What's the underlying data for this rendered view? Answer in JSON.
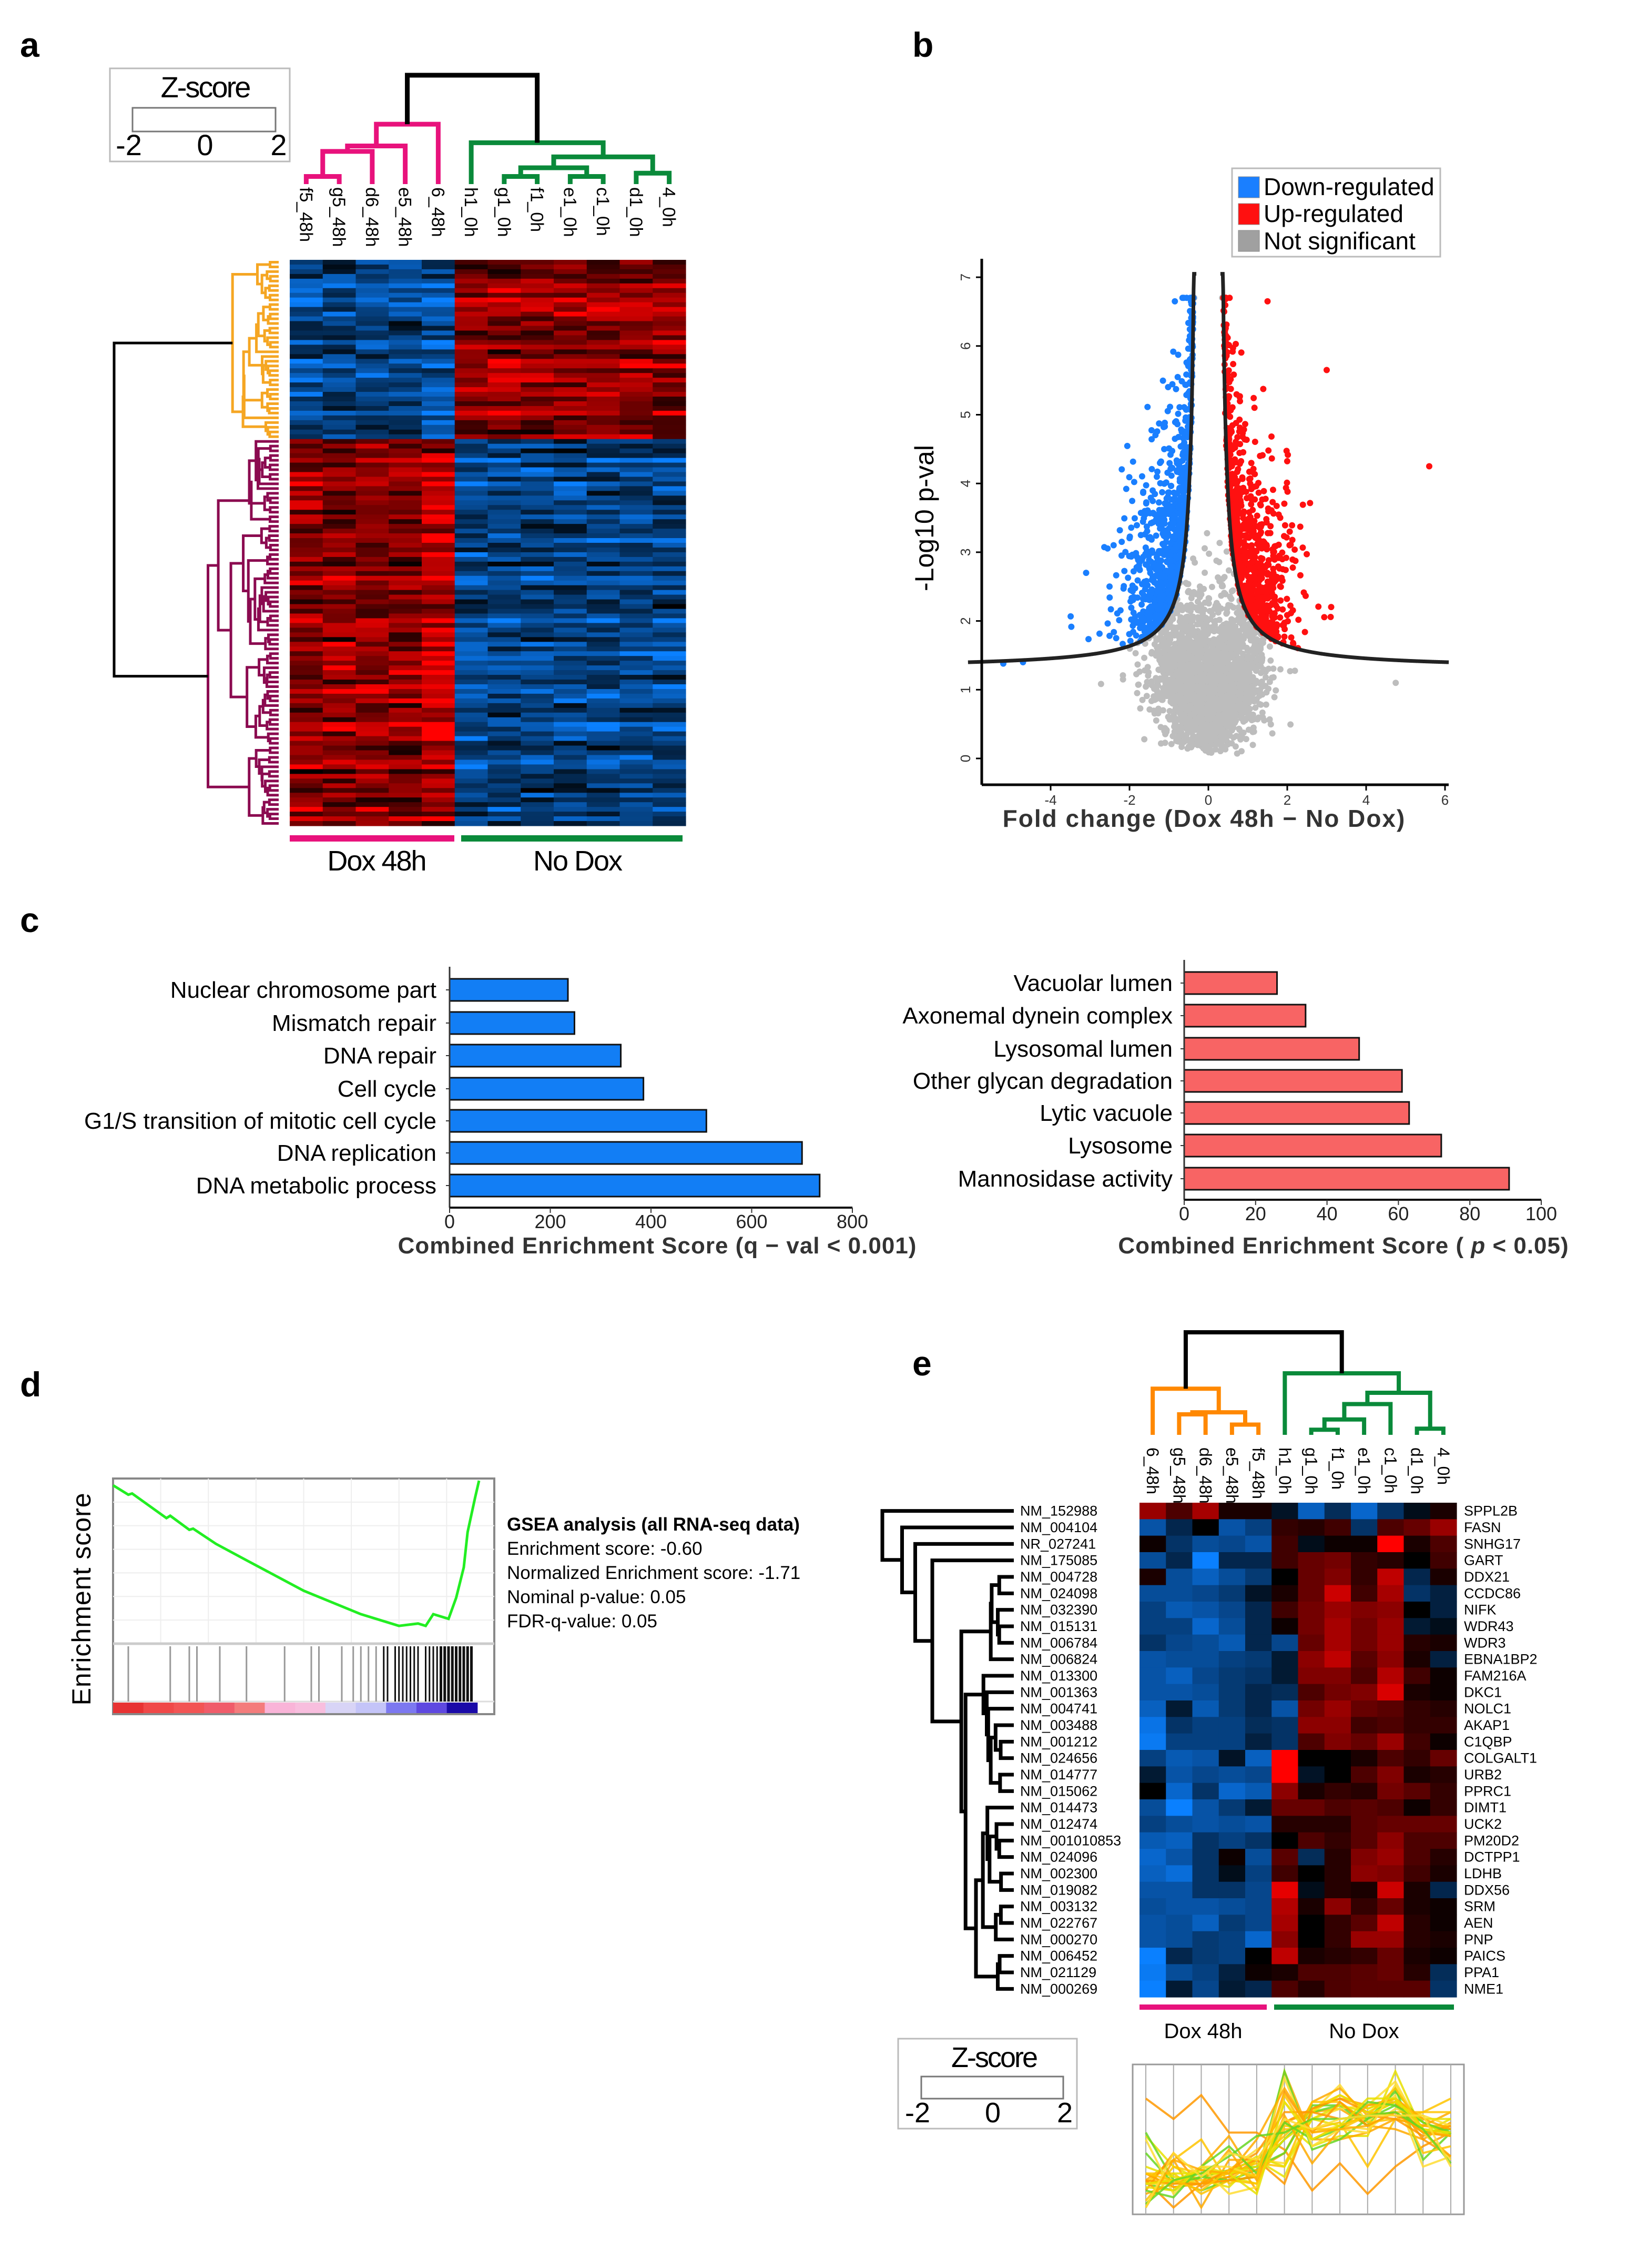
{
  "panels": {
    "a": "a",
    "b": "b",
    "c": "c",
    "d": "d",
    "e": "e"
  },
  "zscore_legend": {
    "title": "Z-score",
    "ticks": [
      "-2",
      "0",
      "2"
    ]
  },
  "colors": {
    "dox48_group": "#e8127c",
    "nodox_group": "#0a8a3a",
    "cluster_orange": "#f5a623",
    "cluster_maroon": "#8b0a50",
    "heat_low": "#0a80ff",
    "heat_mid": "#000000",
    "heat_high": "#ff0000",
    "down": "#1a7fff",
    "up": "#ff1010",
    "ns": "#bdbdbd",
    "bar_left": "#127ef5",
    "bar_right": "#f86464",
    "gsea_line": "#22ee22",
    "e_orange": "#ff8800"
  },
  "chart_data": [
    {
      "id": "a",
      "type": "heatmap",
      "columns": [
        "f5_48h",
        "g5_48h",
        "d6_48h",
        "e5_48h",
        "6_48h",
        "h1_0h",
        "g1_0h",
        "f1_0h",
        "e1_0h",
        "c1_0h",
        "d1_0h",
        "4_0h"
      ],
      "groups": [
        {
          "label": "Dox 48h",
          "columns": 5
        },
        {
          "label": "No Dox",
          "columns": 7
        }
      ],
      "row_clusters": [
        "down in Dox 48h (orange)",
        "up in Dox 48h (maroon)"
      ],
      "color_range": [
        -2,
        2
      ]
    },
    {
      "id": "b",
      "type": "scatter",
      "xlabel": "Fold change (Dox 48h − No Dox)",
      "ylabel": "-Log10 p-val",
      "xlim": [
        -5.8,
        6.1
      ],
      "ylim": [
        -0.3,
        7.3
      ],
      "xticks": [
        "-4",
        "-2",
        "0",
        "2",
        "4",
        "6"
      ],
      "yticks": [
        "0",
        "1",
        "2",
        "3",
        "4",
        "5",
        "6",
        "7"
      ],
      "legend": [
        {
          "label": "Down-regulated",
          "color": "#1a7fff"
        },
        {
          "label": "Up-regulated",
          "color": "#ff1010"
        },
        {
          "label": "Not significant",
          "color": "#a0a0a0"
        }
      ],
      "legend_position": "top-right",
      "threshold_curve": "symmetric hyperbola around 0, asymptote near ±0.27, floor ~1.3",
      "notable_points": [
        {
          "x": 5.6,
          "y": 4.25,
          "class": "up"
        },
        {
          "x": -5.2,
          "y": 1.38,
          "class": "down"
        },
        {
          "x": -4.7,
          "y": 1.4,
          "class": "down"
        },
        {
          "x": -0.85,
          "y": 6.65,
          "class": "down"
        },
        {
          "x": 1.5,
          "y": 6.65,
          "class": "up"
        },
        {
          "x": 3.0,
          "y": 5.65,
          "class": "up"
        },
        {
          "x": -3.1,
          "y": 2.7,
          "class": "down"
        },
        {
          "x": 4.75,
          "y": 1.1,
          "class": "ns"
        }
      ]
    },
    {
      "id": "c-left",
      "type": "bar",
      "orientation": "horizontal",
      "categories": [
        "Nuclear chromosome part",
        "Mismatch repair",
        "DNA repair",
        "Cell cycle",
        "G1/S transition of mitotic cell cycle",
        "DNA replication",
        "DNA metabolic process"
      ],
      "values": [
        235,
        248,
        340,
        385,
        510,
        700,
        735
      ],
      "xlabel": "Combined Enrichment Score (q − val < 0.001)",
      "xlim": [
        0,
        800
      ],
      "xticks": [
        "0",
        "200",
        "400",
        "600",
        "800"
      ]
    },
    {
      "id": "c-right",
      "type": "bar",
      "orientation": "horizontal",
      "categories": [
        "Vacuolar lumen",
        "Axonemal dynein complex",
        "Lysosomal lumen",
        "Other glycan degradation",
        "Lytic vacuole",
        "Lysosome",
        "Mannosidase activity"
      ],
      "values": [
        26,
        34,
        49,
        61,
        63,
        72,
        91
      ],
      "xlabel_prefix": "Combined Enrichment Score ( ",
      "xlabel_italic": "p",
      "xlabel_suffix": " < 0.05)",
      "xlim": [
        0,
        100
      ],
      "xticks": [
        "0",
        "20",
        "40",
        "60",
        "80",
        "100"
      ]
    },
    {
      "id": "d",
      "type": "line",
      "ylabel": "Enrichment score",
      "x": [
        0,
        0.04,
        0.05,
        0.14,
        0.15,
        0.2,
        0.21,
        0.27,
        0.35,
        0.5,
        0.65,
        0.75,
        0.8,
        0.82,
        0.84,
        0.88,
        0.9,
        0.92,
        0.93,
        0.95,
        0.96
      ],
      "y": [
        0,
        -0.04,
        -0.035,
        -0.14,
        -0.13,
        -0.19,
        -0.185,
        -0.25,
        -0.32,
        -0.45,
        -0.55,
        -0.6,
        -0.59,
        -0.6,
        -0.55,
        -0.57,
        -0.48,
        -0.35,
        -0.2,
        -0.05,
        0.02
      ],
      "ylim": [
        -0.64,
        0.02
      ],
      "hits": [
        0.04,
        0.15,
        0.2,
        0.22,
        0.28,
        0.35,
        0.45,
        0.52,
        0.54,
        0.6,
        0.63,
        0.65,
        0.67,
        0.69,
        0.71,
        0.72,
        0.74,
        0.75,
        0.76,
        0.77,
        0.78,
        0.79,
        0.8,
        0.82,
        0.83,
        0.84,
        0.85,
        0.86,
        0.87,
        0.88,
        0.89,
        0.9,
        0.91,
        0.92,
        0.93,
        0.94
      ],
      "rank_colors": [
        "#e83232",
        "#f04848",
        "#f25454",
        "#f05c6a",
        "#f47c7c",
        "#f9b4d8",
        "#f8bede",
        "#d8d4f6",
        "#c4c4f8",
        "#7c78f0",
        "#5e48e0",
        "#1a0aa8"
      ],
      "stats": {
        "title": "GSEA analysis (all RNA-seq data)",
        "enrichment_score": "Enrichment score: -0.60",
        "nes": "Normalized Enrichment score: -1.71",
        "p": "Nominal p-value: 0.05",
        "fdr": "FDR-q-value: 0.05"
      }
    },
    {
      "id": "e",
      "type": "heatmap",
      "columns": [
        "6_48h",
        "g5_48h",
        "d6_48h",
        "e5_48h",
        "f5_48h",
        "h1_0h",
        "g1_0h",
        "f1_0h",
        "e1_0h",
        "c1_0h",
        "d1_0h",
        "4_0h"
      ],
      "groups": [
        {
          "label": "Dox 48h",
          "columns": 5
        },
        {
          "label": "No Dox",
          "columns": 7
        }
      ],
      "row_ids": [
        "NM_152988",
        "NM_004104",
        "NR_027241",
        "NM_175085",
        "NM_004728",
        "NM_024098",
        "NM_032390",
        "NM_015131",
        "NM_006784",
        "NM_006824",
        "NM_013300",
        "NM_001363",
        "NM_004741",
        "NM_003488",
        "NM_001212",
        "NM_024656",
        "NM_014777",
        "NM_015062",
        "NM_014473",
        "NM_012474",
        "NM_001010853",
        "NM_024096",
        "NM_002300",
        "NM_019082",
        "NM_003132",
        "NM_022767",
        "NM_000270",
        "NM_006452",
        "NM_021129",
        "NM_000269"
      ],
      "row_genes": [
        "SPPL2B",
        "FASN",
        "SNHG17",
        "GART",
        "DDX21",
        "CCDC86",
        "NIFK",
        "WDR43",
        "WDR3",
        "EBNA1BP2",
        "FAM216A",
        "DKC1",
        "NOLC1",
        "AKAP1",
        "C1QBP",
        "COLGALT1",
        "URB2",
        "PPRC1",
        "DIMT1",
        "UCK2",
        "PM20D2",
        "DCTPP1",
        "LDHB",
        "DDX56",
        "SRM",
        "AEN",
        "PNP",
        "PAICS",
        "PPA1",
        "NME1"
      ],
      "values": [
        [
          1.2,
          0.6,
          1.3,
          0.2,
          0.2,
          -0.3,
          -1.5,
          -0.7,
          -1.6,
          -0.8,
          -0.2,
          0.2
        ],
        [
          -1.3,
          -0.6,
          0,
          -1.3,
          -1,
          0.4,
          0.3,
          0.5,
          -0.8,
          0.6,
          0.8,
          1.2
        ],
        [
          0.1,
          -0.8,
          -1.2,
          -1.1,
          -1.3,
          0.5,
          -0.2,
          0.1,
          0.1,
          2,
          0.2,
          0.6
        ],
        [
          -1.2,
          -0.6,
          -2,
          -0.6,
          -0.6,
          0.5,
          0.8,
          0.9,
          0.4,
          0.3,
          0,
          0.5
        ],
        [
          0.2,
          -1.2,
          -1.5,
          -1.2,
          -0.9,
          0,
          0.8,
          1,
          0.4,
          1.5,
          -0.6,
          0.2
        ],
        [
          -1.2,
          -1.2,
          -1.1,
          -0.9,
          -0.3,
          0.2,
          0.8,
          1.6,
          0.5,
          1.3,
          -0.8,
          -0.5
        ],
        [
          -1,
          -1.4,
          -1.3,
          -1.1,
          -0.6,
          0.5,
          0.9,
          1.2,
          1,
          1.1,
          0,
          -0.5
        ],
        [
          -1,
          -1,
          -1.6,
          -1.2,
          -0.6,
          0.1,
          0.9,
          1.3,
          0.9,
          1.2,
          -0.4,
          -0.2
        ],
        [
          -0.8,
          -1.1,
          -1.2,
          -1.4,
          -0.6,
          -1.1,
          0.8,
          1.3,
          0.9,
          1.2,
          0.3,
          0.2
        ],
        [
          -1.3,
          -1.2,
          -1.2,
          -1,
          -0.9,
          -0.4,
          1.1,
          1.5,
          0.7,
          1.1,
          0.2,
          -0.5
        ],
        [
          -1.3,
          -1.5,
          -1.1,
          -0.9,
          -0.8,
          -0.4,
          1,
          1,
          0.6,
          1.4,
          0.5,
          0.1
        ],
        [
          -1.3,
          -1.3,
          -1.2,
          -0.9,
          -0.6,
          -0.7,
          0.6,
          0.9,
          1,
          1.7,
          0.2,
          0.1
        ],
        [
          -1.5,
          -0.4,
          -1.4,
          -0.9,
          -0.6,
          -1.3,
          0.9,
          1.2,
          0.8,
          0.7,
          0.4,
          0.3
        ],
        [
          -1.8,
          -0.8,
          -1,
          -1,
          -0.7,
          -0.8,
          1.1,
          1.1,
          0.5,
          0.6,
          0.4,
          0.4
        ],
        [
          -1.9,
          -1,
          -1,
          -1,
          -0.5,
          -0.8,
          0.6,
          1,
          0.8,
          1.2,
          0.5,
          0.1
        ],
        [
          -1,
          -1.4,
          -1.3,
          -0.3,
          -1.5,
          2,
          0,
          0,
          0.2,
          0.6,
          0.4,
          0.8
        ],
        [
          -0.4,
          -1.3,
          -1.1,
          -1.2,
          -1.1,
          2,
          -0.3,
          0,
          0.6,
          1,
          0.2,
          0.3
        ],
        [
          0,
          -1.6,
          -0.8,
          -1.6,
          -1.4,
          1.1,
          0.2,
          0.4,
          0.3,
          0.9,
          0.7,
          0.4
        ],
        [
          -1.2,
          -2,
          -1.3,
          -0.9,
          -0.4,
          0.8,
          0.8,
          0.6,
          0.7,
          0.6,
          0.1,
          0.4
        ],
        [
          -1,
          -1.2,
          -1.3,
          -1.2,
          -1.3,
          0.3,
          0.3,
          0.3,
          0.7,
          0.8,
          0.8,
          0.8
        ],
        [
          -1.4,
          -1.5,
          -0.8,
          -1,
          -0.8,
          0,
          0.6,
          0.4,
          0.7,
          1.1,
          0.6,
          0.6
        ],
        [
          -1.6,
          -1.3,
          -0.8,
          0.1,
          -1.2,
          0.7,
          -0.7,
          0.3,
          1,
          1.2,
          0.6,
          0.3
        ],
        [
          -1.5,
          -1.7,
          -0.8,
          -0.2,
          -1,
          0.5,
          0,
          0.3,
          1.1,
          1,
          0.5,
          0.2
        ],
        [
          -1.3,
          -1.3,
          -0.8,
          -0.8,
          -1.1,
          1.8,
          -0.2,
          0.3,
          0.2,
          1.6,
          0.2,
          -0.6
        ],
        [
          -1.2,
          -1.3,
          -1.3,
          -1.2,
          -1.1,
          1.4,
          0.2,
          1.1,
          0.4,
          0.8,
          0.2,
          0.1
        ],
        [
          -1.3,
          -1.2,
          -1.5,
          -0.9,
          -1.1,
          1.3,
          0,
          0.4,
          0.7,
          1.5,
          0.3,
          0.1
        ],
        [
          -1.3,
          -1.2,
          -0.9,
          -1,
          -1.6,
          1.1,
          0,
          0.4,
          1.2,
          1.2,
          0.3,
          0.2
        ],
        [
          -2,
          -0.6,
          -0.9,
          -1,
          0,
          1.5,
          0.2,
          0.3,
          0.4,
          0.8,
          0.2,
          0.1
        ],
        [
          -1.9,
          -1.2,
          -1,
          -0.5,
          0.1,
          0.2,
          0.6,
          0.6,
          0.7,
          0.8,
          0.3,
          -0.7
        ],
        [
          -2,
          -0.4,
          -1.1,
          -0.4,
          -0.6,
          0.6,
          0.3,
          0.6,
          0.7,
          0.7,
          0.7,
          -0.8
        ]
      ],
      "color_range": [
        -2,
        2
      ]
    }
  ]
}
